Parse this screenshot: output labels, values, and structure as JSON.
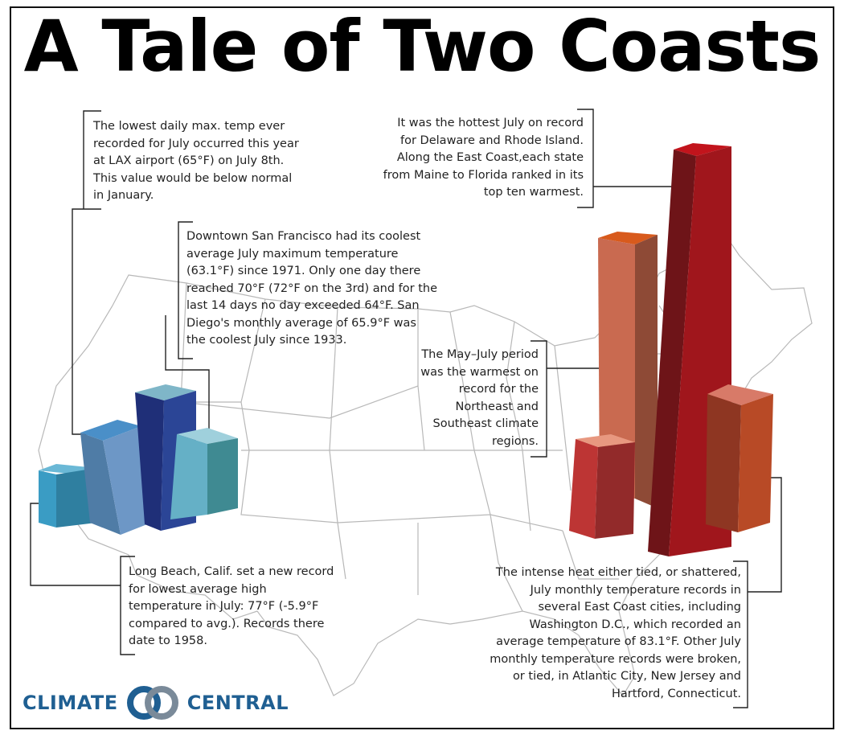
{
  "title": "A Tale of Two Coasts",
  "notes": {
    "lax": "The lowest daily max. temp ever recorded for July occurred this year at LAX airport (65°F) on July 8th. This value would be below normal in January.",
    "sf": "Downtown San Francisco had its coolest average July maximum temperature (63.1°F) since 1971. Only one day there reached 70°F (72°F on the 3rd) and for the last 14 days no day exceeded 64°F. San Diego's monthly average of 65.9°F was the coolest July since 1933.",
    "long_beach": "Long Beach, Calif. set a new record for lowest average high temperature in July: 77°F (-5.9°F compared to avg.). Records there date to 1958.",
    "hottest": "It was the hottest July on record for Delaware and Rhode Island. Along the East Coast,each state from Maine to Florida ranked in its top ten warmest.",
    "may_july": "The May–July period was the warmest on record for the Northeast and Southeast climate regions.",
    "intense": "The intense heat either tied, or shattered, July monthly temperature records in several East Coast cities, including Washington D.C., which recorded an average temperature of 83.1°F. Other July monthly temperature records were broken, or tied, in Atlantic City, New Jersey and Hartford, Connecticut."
  },
  "logo": {
    "word_left": "CLIMATE",
    "word_right": "CENTRAL"
  },
  "colors": {
    "cool_palette": [
      "#3a9cc4",
      "#5f8fc0",
      "#2b3f8e",
      "#5fb0c4"
    ],
    "warm_palette": [
      "#c7432e",
      "#c76245",
      "#a01a1e",
      "#c4532e"
    ],
    "logo_blue": "#1f5f92"
  }
}
